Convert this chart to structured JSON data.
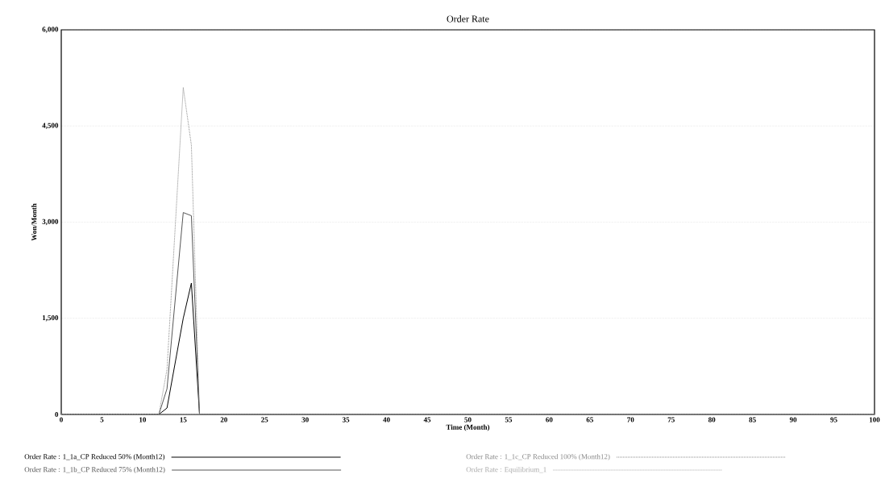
{
  "chart_data": {
    "type": "line",
    "title": "Order Rate",
    "xlabel": "Time (Month)",
    "ylabel": "Won/Month",
    "xlim": [
      0,
      100
    ],
    "xticks": [
      0,
      5,
      10,
      15,
      20,
      25,
      30,
      35,
      40,
      45,
      50,
      55,
      60,
      65,
      70,
      75,
      80,
      85,
      90,
      95,
      100
    ],
    "ylim": [
      0,
      6000
    ],
    "yticks": [
      0,
      {
        "value": 1500,
        "label": "1,500"
      },
      {
        "value": 3000,
        "label": "3,000"
      },
      {
        "value": 4500,
        "label": "4,500"
      },
      {
        "value": 6000,
        "label": "6,000"
      }
    ],
    "grid": "y",
    "legend": "bottom",
    "series": [
      {
        "name": "Order Rate : 1_1a_CP Reduced 50% (Month12)",
        "color": "#000000",
        "line_style": "solid",
        "x": [
          0,
          12,
          13,
          15,
          16,
          17,
          100
        ],
        "values": [
          0,
          0,
          100,
          1500,
          2050,
          0,
          0
        ]
      },
      {
        "name": "Order Rate : 1_1b_CP Reduced 75% (Month12)",
        "color": "#555555",
        "line_style": "solid",
        "x": [
          0,
          12,
          13,
          15,
          16,
          17,
          100
        ],
        "values": [
          0,
          0,
          400,
          3150,
          3100,
          0,
          0
        ]
      },
      {
        "name": "Order Rate : 1_1c_CP Reduced 100% (Month12)",
        "color": "#888888",
        "line_style": "dotted",
        "x": [
          0,
          12,
          13,
          15,
          16,
          17,
          100
        ],
        "values": [
          0,
          0,
          700,
          5100,
          4200,
          0,
          0
        ]
      },
      {
        "name": "Order Rate : Equilibrium_1",
        "color": "#aaaaaa",
        "line_style": "dotted",
        "x": [
          0,
          100
        ],
        "values": [
          0,
          0
        ]
      }
    ]
  }
}
